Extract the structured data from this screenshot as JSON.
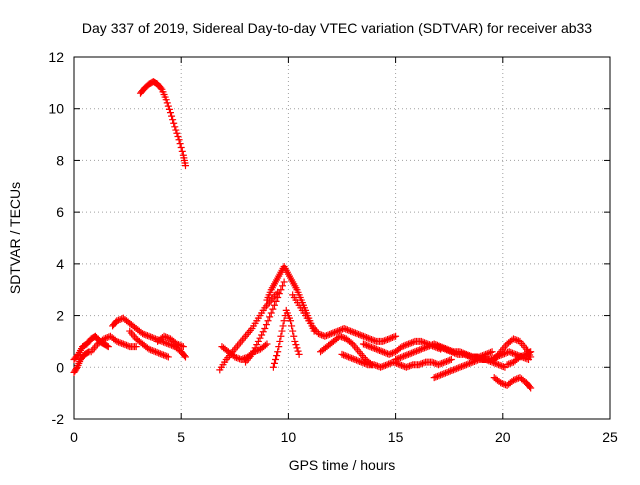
{
  "chart_data": {
    "type": "scatter",
    "title": "Day 337 of 2019, Sidereal Day-to-day VTEC variation (SDTVAR) for receiver ab33",
    "xlabel": "GPS time / hours",
    "ylabel": "SDTVAR / TECUs",
    "xlim": [
      0,
      25
    ],
    "ylim": [
      -2,
      12
    ],
    "xticks": [
      0,
      5,
      10,
      15,
      20,
      25
    ],
    "yticks": [
      -2,
      0,
      2,
      4,
      6,
      8,
      10,
      12
    ],
    "grid": true,
    "marker": "+",
    "series": [
      {
        "name": "satellite track 1",
        "color": "#ff0000",
        "x": [
          0.0,
          0.2,
          0.4,
          0.6,
          0.8,
          1.0,
          1.2,
          1.4,
          1.6
        ],
        "y": [
          0.3,
          0.5,
          0.8,
          0.9,
          1.1,
          1.2,
          1.0,
          0.9,
          0.8
        ]
      },
      {
        "name": "satellite track 2",
        "color": "#ff0000",
        "x": [
          0.0,
          0.15,
          0.3,
          0.5,
          0.7
        ],
        "y": [
          -0.2,
          0.0,
          0.3,
          0.5,
          0.6
        ]
      },
      {
        "name": "satellite track 3",
        "color": "#ff0000",
        "x": [
          0.8,
          1.1,
          1.4,
          1.7,
          2.0,
          2.3,
          2.6,
          2.9
        ],
        "y": [
          0.6,
          0.9,
          1.1,
          1.2,
          1.0,
          0.9,
          0.8,
          0.8
        ]
      },
      {
        "name": "satellite track 4",
        "color": "#ff0000",
        "x": [
          1.8,
          2.0,
          2.3,
          2.6,
          2.9,
          3.2,
          3.5,
          3.8,
          4.1,
          4.4,
          4.7,
          5.0,
          5.2
        ],
        "y": [
          1.6,
          1.8,
          1.9,
          1.7,
          1.5,
          1.3,
          1.2,
          1.1,
          1.0,
          0.9,
          0.8,
          0.6,
          0.4
        ]
      },
      {
        "name": "satellite track 5",
        "color": "#ff0000",
        "x": [
          2.6,
          2.9,
          3.2,
          3.5,
          3.8,
          4.1,
          4.4
        ],
        "y": [
          1.4,
          1.1,
          0.9,
          0.7,
          0.6,
          0.5,
          0.4
        ]
      },
      {
        "name": "satellite track 6",
        "color": "#ff0000",
        "x": [
          3.9,
          4.2,
          4.5,
          4.8,
          5.1
        ],
        "y": [
          1.0,
          1.2,
          1.1,
          0.9,
          0.8
        ]
      },
      {
        "name": "satellite track 7",
        "color": "#ff0000",
        "x": [
          3.1,
          3.3,
          3.5,
          3.7,
          3.9,
          4.1,
          4.3,
          4.5,
          4.7,
          4.9,
          5.1,
          5.2
        ],
        "y": [
          10.6,
          10.8,
          10.95,
          11.05,
          10.95,
          10.75,
          10.35,
          9.85,
          9.3,
          8.8,
          8.2,
          7.8
        ]
      },
      {
        "name": "satellite track 8",
        "color": "#ff0000",
        "x": [
          6.8,
          7.1,
          7.4,
          7.7,
          8.0,
          8.3,
          8.6,
          8.9,
          9.2,
          9.5
        ],
        "y": [
          -0.1,
          0.3,
          0.6,
          0.9,
          1.2,
          1.5,
          1.9,
          2.3,
          2.6,
          2.9
        ]
      },
      {
        "name": "satellite track 9",
        "color": "#ff0000",
        "x": [
          6.9,
          7.2,
          7.5,
          7.8,
          8.1,
          8.4,
          8.7,
          9.0
        ],
        "y": [
          0.8,
          0.6,
          0.4,
          0.3,
          0.4,
          0.6,
          0.7,
          0.9
        ]
      },
      {
        "name": "satellite track 10",
        "color": "#ff0000",
        "x": [
          8.0,
          8.3,
          8.6,
          8.9,
          9.2,
          9.5,
          9.8
        ],
        "y": [
          0.2,
          0.5,
          1.0,
          1.5,
          2.1,
          2.7,
          3.3
        ]
      },
      {
        "name": "satellite track 11",
        "color": "#ff0000",
        "x": [
          9.0,
          9.2,
          9.4,
          9.6,
          9.8,
          10.0,
          10.2,
          10.4,
          10.6,
          10.8,
          11.0,
          11.2
        ],
        "y": [
          2.6,
          3.0,
          3.3,
          3.6,
          3.9,
          3.6,
          3.3,
          3.0,
          2.6,
          2.2,
          1.8,
          1.4
        ]
      },
      {
        "name": "satellite track 12",
        "color": "#ff0000",
        "x": [
          9.3,
          9.5,
          9.7,
          9.9,
          10.1,
          10.3,
          10.5
        ],
        "y": [
          0.0,
          0.6,
          1.4,
          2.2,
          1.8,
          1.0,
          0.5
        ]
      },
      {
        "name": "satellite track 13",
        "color": "#ff0000",
        "x": [
          10.2,
          10.5,
          10.8,
          11.1,
          11.4,
          11.7,
          12.0,
          12.3,
          12.6,
          12.9,
          13.2,
          13.5,
          13.8,
          14.1,
          14.4,
          14.7,
          15.0
        ],
        "y": [
          2.8,
          2.4,
          2.0,
          1.6,
          1.3,
          1.2,
          1.3,
          1.4,
          1.5,
          1.4,
          1.3,
          1.2,
          1.1,
          1.0,
          1.0,
          1.1,
          1.2
        ]
      },
      {
        "name": "satellite track 14",
        "color": "#ff0000",
        "x": [
          11.5,
          11.8,
          12.1,
          12.4,
          12.7,
          13.0,
          13.3,
          13.6,
          13.9
        ],
        "y": [
          0.6,
          0.8,
          1.0,
          1.2,
          1.1,
          0.9,
          0.6,
          0.3,
          0.1
        ]
      },
      {
        "name": "satellite track 15",
        "color": "#ff0000",
        "x": [
          12.5,
          12.8,
          13.1,
          13.4,
          13.7,
          14.0,
          14.3,
          14.6,
          14.9,
          15.2,
          15.5,
          15.8,
          16.1,
          16.4,
          16.7,
          17.0,
          17.3,
          17.6
        ],
        "y": [
          0.5,
          0.4,
          0.3,
          0.2,
          0.1,
          0.1,
          0.0,
          0.1,
          0.2,
          0.1,
          0.0,
          0.1,
          0.1,
          0.2,
          0.2,
          0.1,
          0.2,
          0.3
        ]
      },
      {
        "name": "satellite track 16",
        "color": "#ff0000",
        "x": [
          13.5,
          13.8,
          14.1,
          14.4,
          14.7,
          15.0,
          15.3,
          15.6,
          15.9,
          16.2,
          16.5,
          16.8,
          17.1
        ],
        "y": [
          0.9,
          0.8,
          0.7,
          0.6,
          0.5,
          0.6,
          0.8,
          0.9,
          1.0,
          1.0,
          0.9,
          0.8,
          0.7
        ]
      },
      {
        "name": "satellite track 17",
        "color": "#ff0000",
        "x": [
          15.0,
          15.3,
          15.6,
          15.9,
          16.2,
          16.5,
          16.8,
          17.1,
          17.4,
          17.7,
          18.0,
          18.3,
          18.6,
          18.9,
          19.2,
          19.5
        ],
        "y": [
          0.3,
          0.4,
          0.5,
          0.6,
          0.7,
          0.8,
          0.9,
          0.8,
          0.7,
          0.6,
          0.6,
          0.5,
          0.4,
          0.4,
          0.5,
          0.6
        ]
      },
      {
        "name": "satellite track 18",
        "color": "#ff0000",
        "x": [
          16.8,
          17.1,
          17.4,
          17.7,
          18.0,
          18.3,
          18.6,
          18.9,
          19.2,
          19.5,
          19.8,
          20.1
        ],
        "y": [
          -0.4,
          -0.3,
          -0.2,
          -0.1,
          0.0,
          0.1,
          0.2,
          0.3,
          0.3,
          0.2,
          0.1,
          0.0
        ]
      },
      {
        "name": "satellite track 19",
        "color": "#ff0000",
        "x": [
          17.0,
          17.3,
          17.6,
          17.9,
          18.2,
          18.5,
          18.8,
          19.1,
          19.4,
          19.7,
          20.0,
          20.3,
          20.6,
          20.9,
          21.2
        ],
        "y": [
          0.8,
          0.7,
          0.6,
          0.5,
          0.5,
          0.4,
          0.4,
          0.3,
          0.3,
          0.4,
          0.5,
          0.6,
          0.5,
          0.4,
          0.3
        ]
      },
      {
        "name": "satellite track 20",
        "color": "#ff0000",
        "x": [
          19.6,
          19.9,
          20.2,
          20.5,
          20.8,
          21.1,
          21.3
        ],
        "y": [
          0.3,
          0.6,
          0.9,
          1.1,
          1.0,
          0.7,
          0.4
        ]
      },
      {
        "name": "satellite track 21",
        "color": "#ff0000",
        "x": [
          19.6,
          19.9,
          20.2,
          20.5,
          20.8,
          21.1,
          21.3
        ],
        "y": [
          -0.4,
          -0.6,
          -0.7,
          -0.5,
          -0.4,
          -0.6,
          -0.8
        ]
      },
      {
        "name": "satellite track 22",
        "color": "#ff0000",
        "x": [
          20.2,
          20.5,
          20.8,
          21.1,
          21.3
        ],
        "y": [
          0.1,
          0.2,
          0.4,
          0.5,
          0.6
        ]
      }
    ]
  }
}
